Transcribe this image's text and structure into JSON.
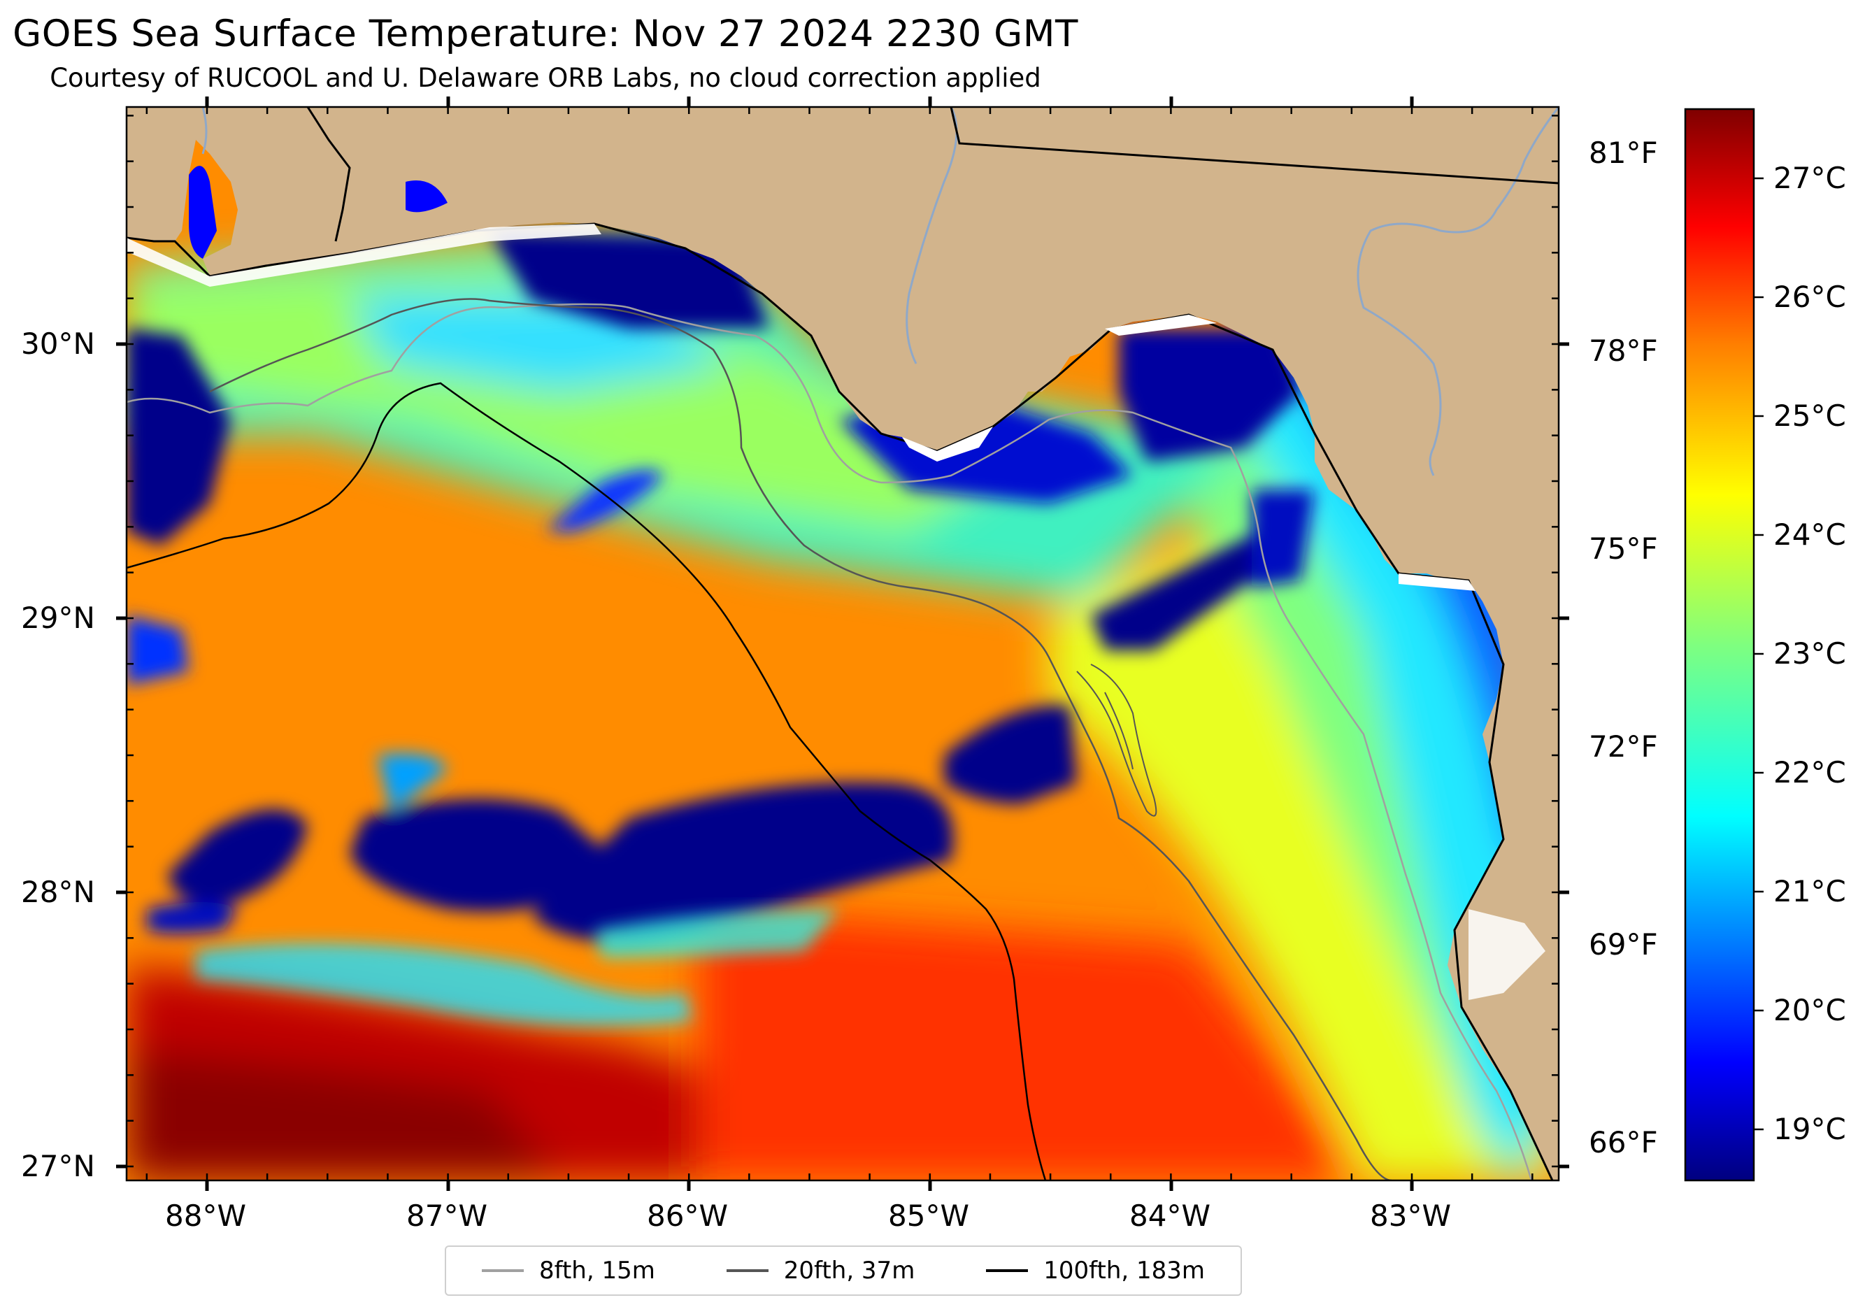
{
  "title": "GOES Sea Surface Temperature: Nov 27 2024 2230 GMT",
  "subtitle": "Courtesy of RUCOOL and U. Delaware ORB Labs, no cloud correction applied",
  "map": {
    "lon_ticks": [
      "88°W",
      "87°W",
      "86°W",
      "85°W",
      "84°W",
      "83°W"
    ],
    "lat_ticks": [
      "30°N",
      "29°N",
      "28°N",
      "27°N"
    ],
    "fahrenheit_ticks": [
      "81°F",
      "78°F",
      "75°F",
      "72°F",
      "69°F",
      "66°F"
    ],
    "land_color": "#d2b48c",
    "colormap": "jet"
  },
  "colorbar": {
    "labels": [
      "27°C",
      "26°C",
      "25°C",
      "24°C",
      "23°C",
      "22°C",
      "21°C",
      "20°C",
      "19°C"
    ],
    "colors": [
      "#00007f",
      "#0000ff",
      "#007fff",
      "#00ffff",
      "#7fff7f",
      "#ffff00",
      "#ff7f00",
      "#ff0000",
      "#7f0000"
    ]
  },
  "legend": [
    {
      "label": "8fth, 15m",
      "color": "#a0a0a0"
    },
    {
      "label": "20fth, 37m",
      "color": "#555555"
    },
    {
      "label": "100fth, 183m",
      "color": "#000000"
    }
  ]
}
